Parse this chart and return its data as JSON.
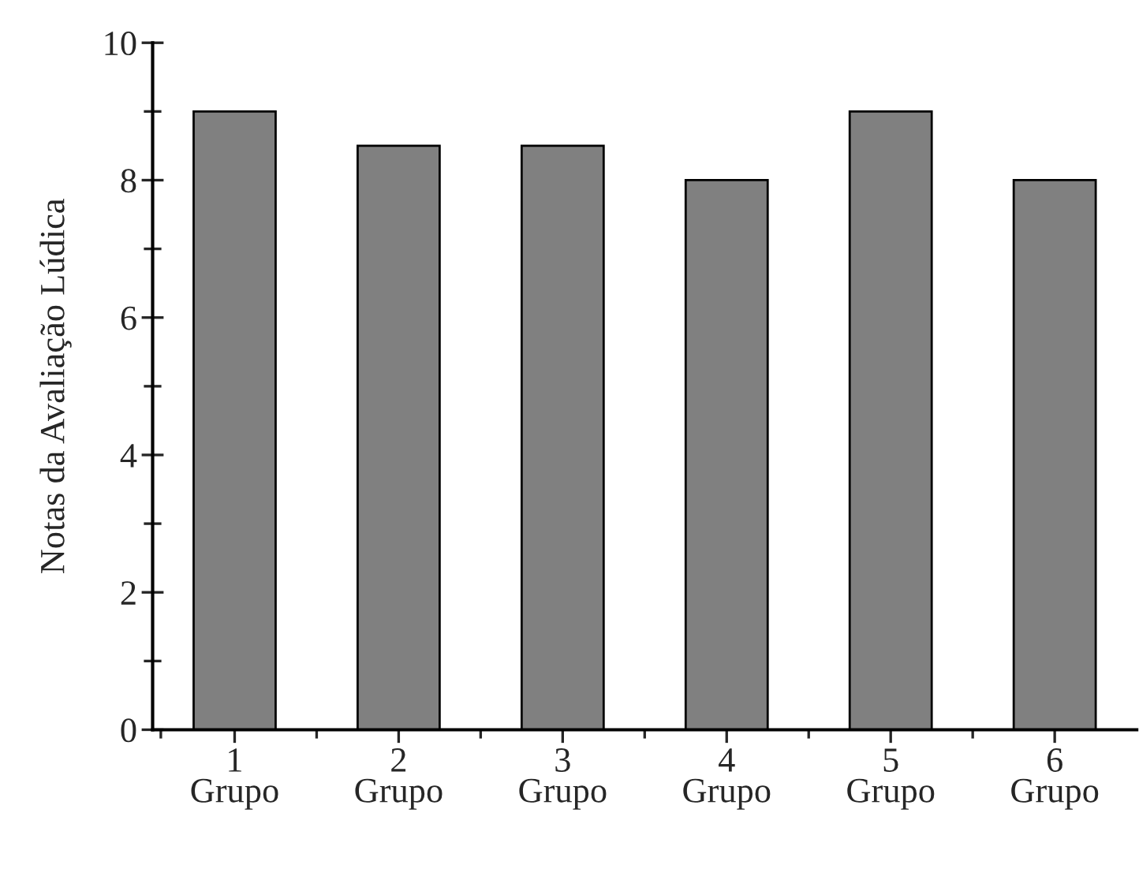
{
  "chart_data": {
    "type": "bar",
    "ylabel": "Notas da Avaliação Lúdica",
    "categories": [
      "1\nGrupo",
      "2\nGrupo",
      "3\nGrupo",
      "4\nGrupo",
      "5\nGrupo",
      "6\nGrupo"
    ],
    "values": [
      9,
      8.5,
      8.5,
      8,
      9,
      8
    ],
    "color": "#808080",
    "ylim": [
      0,
      10
    ],
    "yticks": [
      0,
      {
        "value": 1,
        "label": null
      },
      2,
      {
        "value": 3,
        "label": null
      },
      4,
      {
        "value": 5,
        "label": null
      },
      6,
      {
        "value": 7,
        "label": null
      },
      8,
      {
        "value": 9,
        "label": null
      },
      10
    ],
    "grid": false,
    "legend": false
  }
}
